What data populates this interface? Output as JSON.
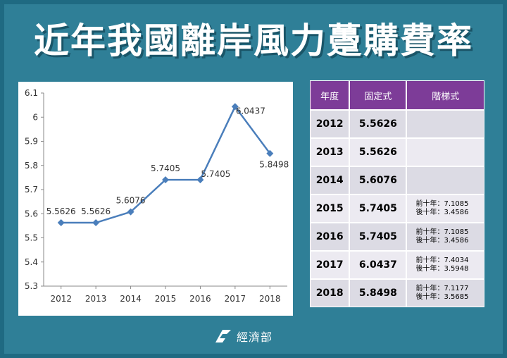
{
  "title": "近年我國離岸風力躉購費率",
  "chart_data": {
    "type": "line",
    "categories": [
      "2012",
      "2013",
      "2014",
      "2015",
      "2016",
      "2017",
      "2018"
    ],
    "values": [
      5.5626,
      5.5626,
      5.6076,
      5.7405,
      5.7405,
      6.0437,
      5.8498
    ],
    "data_labels": [
      "5.5626",
      "5.5626",
      "5.6076",
      "5.7405",
      "5.7405",
      "6.0437",
      "5.8498"
    ],
    "y_ticks": [
      "5.3",
      "5.4",
      "5.5",
      "5.6",
      "5.7",
      "5.8",
      "5.9",
      "6",
      "6.1"
    ],
    "ylim": [
      5.3,
      6.1
    ],
    "title": "",
    "xlabel": "",
    "ylabel": "",
    "grid": false,
    "line_color": "#4a7ebb"
  },
  "table": {
    "headers": [
      "年度",
      "固定式",
      "階梯式"
    ],
    "rows": [
      {
        "year": "2012",
        "fixed": "5.5626",
        "tier1": "",
        "tier2": ""
      },
      {
        "year": "2013",
        "fixed": "5.5626",
        "tier1": "",
        "tier2": ""
      },
      {
        "year": "2014",
        "fixed": "5.6076",
        "tier1": "",
        "tier2": ""
      },
      {
        "year": "2015",
        "fixed": "5.7405",
        "tier1": "前十年：7.1085",
        "tier2": "後十年：3.4586"
      },
      {
        "year": "2016",
        "fixed": "5.7405",
        "tier1": "前十年：7.1085",
        "tier2": "後十年：3.4586"
      },
      {
        "year": "2017",
        "fixed": "6.0437",
        "tier1": "前十年：7.4034",
        "tier2": "後十年：3.5948"
      },
      {
        "year": "2018",
        "fixed": "5.8498",
        "tier1": "前十年：7.1177",
        "tier2": "後十年：3.5685"
      }
    ]
  },
  "footer": {
    "org": "經濟部",
    "logo_icon": "moea-logo-icon"
  },
  "colors": {
    "background": "#2f7f97",
    "table_header": "#7d3c98"
  }
}
